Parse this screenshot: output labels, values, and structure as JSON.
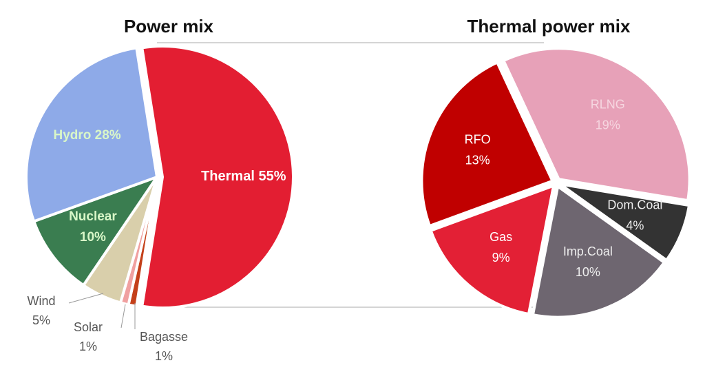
{
  "chart_data": [
    {
      "type": "pie",
      "title": "Power mix",
      "categories": [
        "Thermal",
        "Bagasse",
        "Solar",
        "Wind",
        "Nuclear",
        "Hydro"
      ],
      "values": [
        55,
        1,
        1,
        5,
        10,
        28
      ],
      "value_labels": [
        "55%",
        "1%",
        "1%",
        "5%",
        "10%",
        "28%"
      ],
      "colors": [
        "#e31e32",
        "#c4401a",
        "#f0a0a0",
        "#d9cfab",
        "#3a7d50",
        "#8eaae8"
      ]
    },
    {
      "type": "pie",
      "title": "Thermal power mix",
      "categories": [
        "RLNG",
        "Dom.Coal",
        "Imp.Coal",
        "Gas",
        "RFO"
      ],
      "values": [
        19,
        4,
        10,
        9,
        13
      ],
      "value_labels": [
        "19%",
        "4%",
        "10%",
        "9%",
        "13%"
      ],
      "colors": [
        "#e7a1b8",
        "#333333",
        "#6e6670",
        "#e32035",
        "#c00000"
      ]
    }
  ]
}
